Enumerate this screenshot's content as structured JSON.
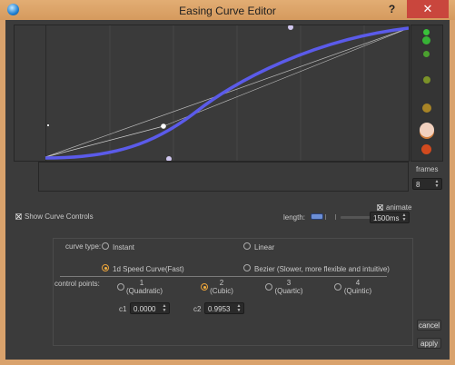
{
  "window": {
    "title": "Easing Curve Editor",
    "help": "?",
    "close": "✕"
  },
  "curve": {
    "type_selected": "1d Speed Curve(Fast)"
  },
  "frames": {
    "label": "frames",
    "value": "8"
  },
  "show_curve_controls": {
    "label": "Show Curve Controls",
    "checked": true
  },
  "animate": {
    "label": "animate",
    "checked": true
  },
  "length": {
    "label": "length:",
    "value": "1500ms"
  },
  "curve_type": {
    "label": "curve type:",
    "options": [
      {
        "label": "Instant",
        "selected": false
      },
      {
        "label": "Linear",
        "selected": false
      },
      {
        "label": "1d Speed Curve(Fast)",
        "selected": true
      },
      {
        "label": "Bezier (Slower, more flexible and intuitive)",
        "selected": false
      }
    ]
  },
  "control_points": {
    "label": "control points:",
    "options": [
      {
        "num": "1",
        "name": "(Quadratic)",
        "selected": false
      },
      {
        "num": "2",
        "name": "(Cubic)",
        "selected": true
      },
      {
        "num": "3",
        "name": "(Quartic)",
        "selected": false
      },
      {
        "num": "4",
        "name": "(Quintic)",
        "selected": false
      }
    ]
  },
  "coefficients": {
    "c1_label": "c1",
    "c1_value": "0.0000",
    "c2_label": "c2",
    "c2_value": "0.9953"
  },
  "buttons": {
    "cancel": "cancel",
    "apply": "apply"
  },
  "colors": {
    "curve": "#5b5bea",
    "selected_radio": "#f5b13f",
    "window_frame": "#d9a26c",
    "close_button": "#c9463d"
  }
}
